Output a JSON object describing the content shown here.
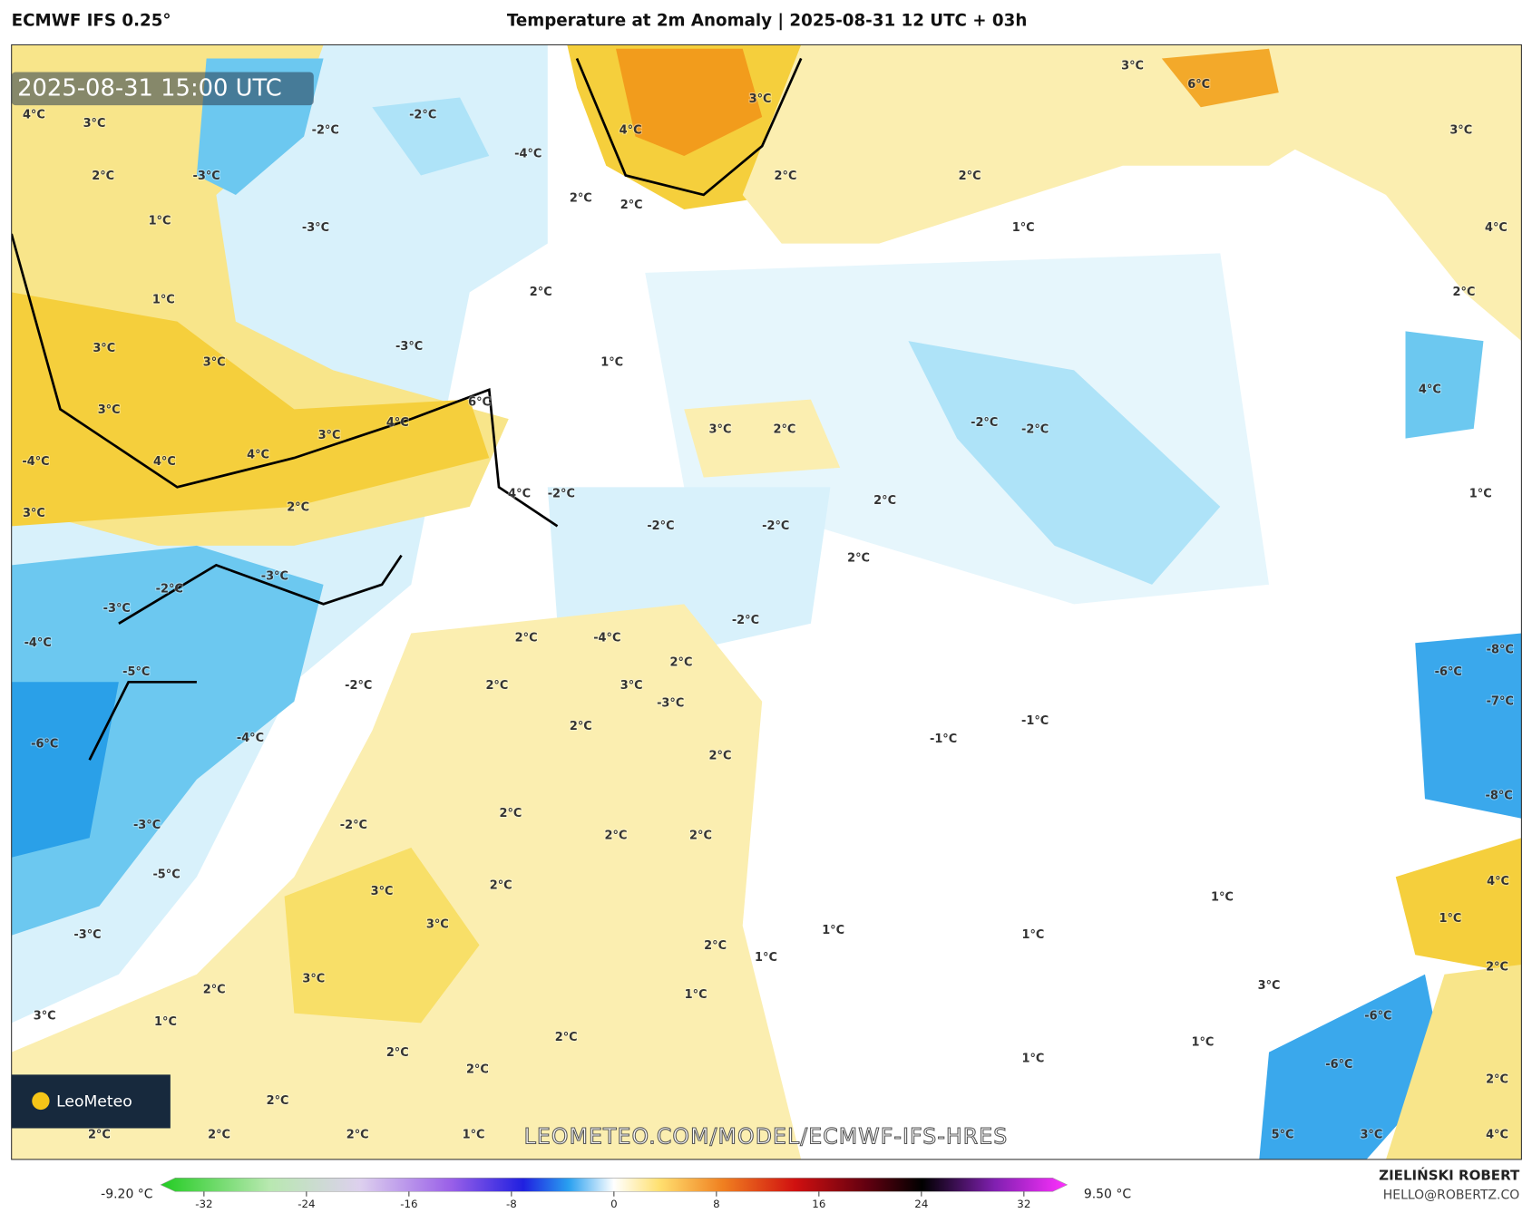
{
  "header": {
    "model": "ECMWF IFS 0.25°",
    "title": "Temperature at 2m Anomaly | 2025-08-31 12 UTC + 03h",
    "valid_time": "2025-08-31 15:00 UTC",
    "watermark": "LEOMETEO.COM/MODEL/ECMWF-IFS-HRES",
    "logo": "LeoMeteo"
  },
  "footer": {
    "author": "ZIELIŃSKI ROBERT",
    "email": "HELLO@ROBERTZ.CO"
  },
  "colorbar": {
    "lim": [
      -35,
      35
    ],
    "ticks": [
      -32,
      -24,
      -16,
      -8,
      0,
      8,
      16,
      24,
      32
    ],
    "min_label": "-9.20 °C",
    "max_label": "9.50 °C"
  },
  "map": {
    "labels": [
      "4°C",
      "3°C",
      "-2°C",
      "-2°C",
      "-4°C",
      "4°C",
      "3°C",
      "3°C",
      "6°C",
      "3°C",
      "2°C",
      "-3°C",
      "1°C",
      "-3°C",
      "2°C",
      "2°C",
      "2°C",
      "2°C",
      "1°C",
      "4°C",
      "2°C",
      "2°C",
      "1°C",
      "3°C",
      "3°C",
      "-3°C",
      "1°C",
      "3°C",
      "4°C",
      "6°C",
      "3°C",
      "3°C",
      "2°C",
      "-2°C",
      "-2°C",
      "4°C",
      "-4°C",
      "4°C",
      "4°C",
      "4°C",
      "-2°C",
      "2°C",
      "1°C",
      "3°C",
      "2°C",
      "-2°C",
      "-2°C",
      "2°C",
      "-2°C",
      "-3°C",
      "-3°C",
      "-2°C",
      "-4°C",
      "2°C",
      "-4°C",
      "2°C",
      "-8°C",
      "-6°C",
      "-5°C",
      "-2°C",
      "2°C",
      "3°C",
      "-3°C",
      "-7°C",
      "2°C",
      "-4°C",
      "-1°C",
      "-1°C",
      "-6°C",
      "2°C",
      "-8°C",
      "2°C",
      "-3°C",
      "-2°C",
      "2°C",
      "2°C",
      "-5°C",
      "2°C",
      "3°C",
      "4°C",
      "1°C",
      "3°C",
      "1°C",
      "1°C",
      "-3°C",
      "2°C",
      "1°C",
      "1°C",
      "2°C",
      "3°C",
      "2°C",
      "1°C",
      "3°C",
      "3°C",
      "1°C",
      "-6°C",
      "2°C",
      "1°C",
      "2°C",
      "1°C",
      "2°C",
      "-6°C",
      "2°C",
      "2°C",
      "2°C",
      "2°C",
      "2°C",
      "1°C",
      "5°C",
      "3°C",
      "4°C"
    ]
  }
}
